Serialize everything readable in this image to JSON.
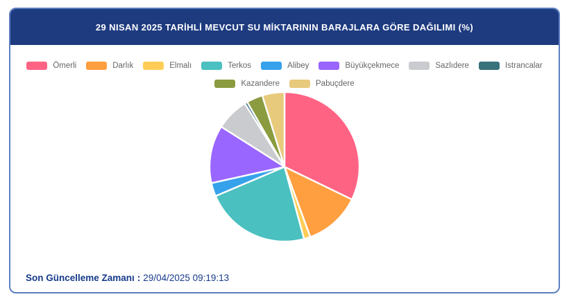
{
  "header": {
    "title": "29 NISAN 2025 TARİHLİ MEVCUT SU MİKTARININ BARAJLARA GÖRE DAĞILIMI (%)"
  },
  "footer": {
    "label": "Son Güncelleme Zamanı",
    "separator": ":",
    "value": "29/04/2025 09:19:13"
  },
  "colors": {
    "header_bg": "#1e3b80",
    "card_border": "#5d7fc0",
    "footer_text": "#163a8a",
    "legend_text": "#666666",
    "slice_border": "#ffffff",
    "page_bg": "#ffffff"
  },
  "chart_data": {
    "type": "pie",
    "title": "29 NISAN 2025 TARİHLİ MEVCUT SU MİKTARININ BARAJLARA GÖRE DAĞILIMI (%)",
    "unit": "%",
    "legend_position": "top",
    "start_angle_deg": 0,
    "direction": "clockwise",
    "slices": [
      {
        "label": "Ömerli",
        "value": 32.2,
        "color": "#ff6384"
      },
      {
        "label": "Darlık",
        "value": 12.2,
        "color": "#ff9f40"
      },
      {
        "label": "Elmalı",
        "value": 1.4,
        "color": "#ffcd56"
      },
      {
        "label": "Terkos",
        "value": 22.8,
        "color": "#4bc0c0"
      },
      {
        "label": "Alibey",
        "value": 2.9,
        "color": "#36a2eb"
      },
      {
        "label": "Büyükçekmece",
        "value": 12.5,
        "color": "#9966ff"
      },
      {
        "label": "Sazlıdere",
        "value": 7.1,
        "color": "#c9cbcf"
      },
      {
        "label": "Istrancalar",
        "value": 0.6,
        "color": "#38727b"
      },
      {
        "label": "Kazandere",
        "value": 3.5,
        "color": "#8a9b40"
      },
      {
        "label": "Pabuçdere",
        "value": 4.8,
        "color": "#e8ca7d"
      }
    ]
  }
}
